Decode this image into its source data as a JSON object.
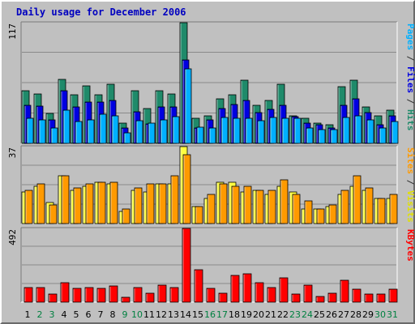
{
  "chart_data": {
    "type": "bar",
    "title": "Daily usage for December 2006",
    "categories": [
      "1",
      "2",
      "3",
      "4",
      "5",
      "6",
      "7",
      "8",
      "9",
      "10",
      "11",
      "12",
      "13",
      "14",
      "15",
      "16",
      "17",
      "18",
      "19",
      "20",
      "21",
      "22",
      "23",
      "24",
      "25",
      "26",
      "27",
      "28",
      "29",
      "30",
      "31"
    ],
    "weekend_days": [
      "2",
      "3",
      "9",
      "10",
      "16",
      "17",
      "23",
      "24",
      "30",
      "31"
    ],
    "colors": {
      "hits": "#1f8a6a",
      "files": "#0000e0",
      "pages": "#00b0ff",
      "visits": "#ffff40",
      "sites": "#ff9a00",
      "kbytes": "#ff0000",
      "weekday_label": "#000000",
      "weekend_label": "#008040",
      "title": "#0000c0"
    },
    "panels": [
      {
        "id": "top",
        "ymax": 117,
        "ymax_label": "117",
        "side_labels": [
          {
            "text": "Pages",
            "color": "#00b0ff"
          },
          {
            "text": " / ",
            "color": "#303030"
          },
          {
            "text": "Files",
            "color": "#0000e0"
          },
          {
            "text": " / ",
            "color": "#303030"
          },
          {
            "text": "Hits",
            "color": "#1f8a6a"
          }
        ],
        "series": [
          {
            "name": "Hits",
            "key": "hits",
            "values": [
              51,
              48,
              29,
              62,
              47,
              56,
              47,
              57,
              20,
              51,
              34,
              51,
              48,
              117,
              24,
              27,
              43,
              47,
              61,
              37,
              42,
              57,
              27,
              24,
              20,
              18,
              55,
              61,
              35,
              27,
              32
            ]
          },
          {
            "name": "Files",
            "key": "files",
            "values": [
              37,
              36,
              23,
              51,
              35,
              40,
              40,
              42,
              15,
              31,
              19,
              35,
              35,
              81,
              15,
              23,
              34,
              38,
              42,
              30,
              33,
              37,
              26,
              20,
              18,
              15,
              37,
              43,
              30,
              18,
              27
            ]
          },
          {
            "name": "Pages",
            "key": "pages",
            "values": [
              24,
              23,
              15,
              32,
              21,
              23,
              28,
              27,
              10,
              22,
              20,
              23,
              26,
              72,
              16,
              15,
              25,
              24,
              24,
              22,
              25,
              24,
              24,
              15,
              13,
              13,
              25,
              27,
              23,
              15,
              21
            ]
          }
        ]
      },
      {
        "id": "middle",
        "ymax": 37,
        "ymax_label": "37",
        "side_labels": [
          {
            "text": "Sites",
            "color": "#ff9a00"
          },
          {
            "text": " / ",
            "color": "#303030"
          },
          {
            "text": "Visits",
            "color": "#e0e000"
          }
        ],
        "series": [
          {
            "name": "Visits",
            "key": "visits",
            "values": [
              15,
              18,
              10,
              23,
              16,
              18,
              20,
              19,
              6,
              16,
              15,
              19,
              19,
              37,
              8,
              12,
              20,
              20,
              15,
              16,
              14,
              18,
              15,
              7,
              7,
              8,
              14,
              18,
              16,
              12,
              12
            ]
          },
          {
            "name": "Sites",
            "key": "sites",
            "values": [
              16,
              19,
              9,
              23,
              17,
              19,
              20,
              20,
              7,
              17,
              19,
              19,
              23,
              33,
              8,
              14,
              19,
              18,
              18,
              16,
              16,
              21,
              14,
              11,
              7,
              9,
              16,
              23,
              17,
              12,
              14
            ]
          }
        ]
      },
      {
        "id": "bottom",
        "ymax": 492,
        "ymax_label": "492",
        "side_labels": [
          {
            "text": "KBytes",
            "color": "#ff0000"
          }
        ],
        "series": [
          {
            "name": "KBytes",
            "key": "kbytes",
            "values": [
              96,
              96,
              56,
              128,
              90,
              100,
              94,
              108,
              35,
              100,
              60,
              113,
              98,
              492,
              216,
              90,
              60,
              178,
              188,
              130,
              100,
              164,
              56,
              112,
              36,
              60,
              145,
              86,
              55,
              56,
              86
            ]
          }
        ]
      }
    ]
  }
}
